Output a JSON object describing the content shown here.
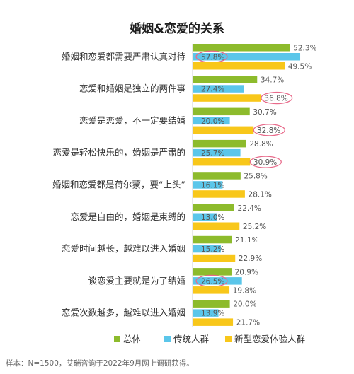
{
  "chart_data": {
    "type": "bar",
    "orientation": "horizontal",
    "title": "婚姻&恋爱的关系",
    "categories": [
      "婚姻和恋爱都需要严肃认真对待",
      "恋爱和婚姻是独立的两件事",
      "恋爱是恋爱，不一定要结婚",
      "恋爱是轻松快乐的，婚姻是严肃的",
      "婚姻和恋爱都是荷尔蒙，要“上头”",
      "恋爱是自由的，婚姻是束缚的",
      "恋爱时间越长，越难以进入婚姻",
      "谈恋爱主要就是为了结婚",
      "恋爱次数越多，越难以进入婚姻"
    ],
    "series": [
      {
        "name": "总体",
        "color": "#8dbb2c",
        "values": [
          52.3,
          34.7,
          30.7,
          28.8,
          25.8,
          22.4,
          21.1,
          20.9,
          20.0
        ]
      },
      {
        "name": "传统人群",
        "color": "#5bc6ea",
        "values": [
          57.8,
          27.4,
          20.0,
          25.7,
          16.1,
          13.0,
          15.2,
          26.5,
          13.9
        ]
      },
      {
        "name": "新型恋爱体验人群",
        "color": "#f8c71a",
        "values": [
          49.5,
          36.8,
          32.8,
          30.9,
          28.1,
          25.2,
          22.9,
          19.8,
          21.7
        ]
      }
    ],
    "value_suffix": "%",
    "highlighted": [
      {
        "series": 1,
        "index": 0
      },
      {
        "series": 2,
        "index": 1
      },
      {
        "series": 2,
        "index": 2
      },
      {
        "series": 2,
        "index": 3
      },
      {
        "series": 1,
        "index": 7
      }
    ],
    "highlight_color": "#e86a8a",
    "legend_position": "bottom",
    "grid": false
  },
  "footnote": "样本：N=1500，艾瑞咨询于2022年9月网上调研获得。"
}
